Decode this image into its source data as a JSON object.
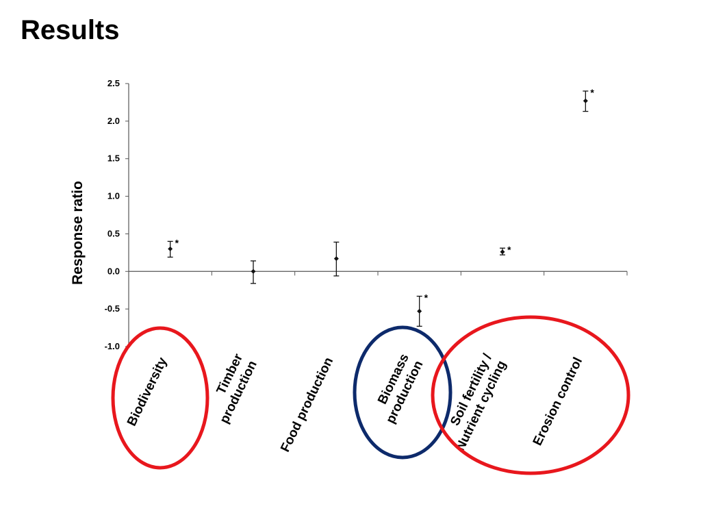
{
  "slide": {
    "title": "Results"
  },
  "chart_data": {
    "type": "scatter",
    "ylabel": "Response ratio",
    "ylim": [
      -1.0,
      2.5
    ],
    "yticks": [
      "2.5",
      "2.0",
      "1.5",
      "1.0",
      "0.5",
      "0.0",
      "-0.5",
      "-1.0"
    ],
    "categories": [
      [
        "Biodiversity"
      ],
      [
        "Timber",
        "production"
      ],
      [
        "Food production"
      ],
      [
        "Biomass",
        "production"
      ],
      [
        "Soil fertility /",
        "Nutrient cycling"
      ],
      [
        "Erosion control"
      ]
    ],
    "values": [
      0.3,
      0.0,
      0.17,
      -0.53,
      0.26,
      2.27
    ],
    "error_low": [
      0.19,
      -0.16,
      -0.06,
      -0.73,
      0.22,
      2.13
    ],
    "error_high": [
      0.4,
      0.14,
      0.39,
      -0.33,
      0.31,
      2.4
    ],
    "significance": [
      "*",
      "",
      "",
      "*",
      "*",
      "*"
    ],
    "grid": false,
    "annotations": {
      "highlights": [
        {
          "target": "Biodiversity",
          "color": "#e8171d"
        },
        {
          "target": "Biomass production",
          "color": "#0d2a6b"
        },
        {
          "target": "Soil fertility / Nutrient cycling; Erosion control",
          "color": "#e8171d"
        }
      ]
    }
  }
}
